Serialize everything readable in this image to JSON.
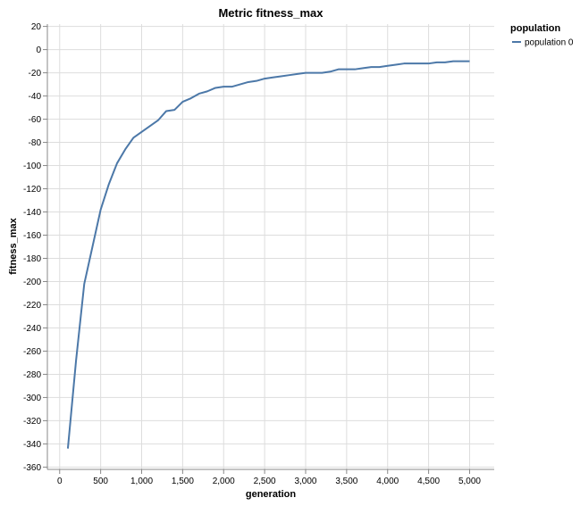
{
  "chart_data": {
    "type": "line",
    "title": "Metric fitness_max",
    "xlabel": "generation",
    "ylabel": "fitness_max",
    "xlim": [
      -150,
      5300
    ],
    "ylim": [
      -362,
      22
    ],
    "x_ticks": [
      0,
      500,
      1000,
      1500,
      2000,
      2500,
      3000,
      3500,
      4000,
      4500,
      5000
    ],
    "x_tick_labels": [
      "0",
      "500",
      "1,000",
      "1,500",
      "2,000",
      "2,500",
      "3,000",
      "3,500",
      "4,000",
      "4,500",
      "5,000"
    ],
    "y_ticks": [
      20,
      0,
      -20,
      -40,
      -60,
      -80,
      -100,
      -120,
      -140,
      -160,
      -180,
      -200,
      -220,
      -240,
      -260,
      -280,
      -300,
      -320,
      -340,
      -360
    ],
    "y_tick_labels": [
      "20",
      "0",
      "-20",
      "-40",
      "-60",
      "-80",
      "-100",
      "-120",
      "-140",
      "-160",
      "-180",
      "-200",
      "-220",
      "-240",
      "-260",
      "-280",
      "-300",
      "-320",
      "-340",
      "-360"
    ],
    "grid": true,
    "legend": {
      "title": "population",
      "placement": "right"
    },
    "series": [
      {
        "name": "population 0",
        "color": "#4c78a8",
        "x": [
          100,
          200,
          300,
          400,
          500,
          600,
          700,
          800,
          900,
          1000,
          1100,
          1200,
          1300,
          1400,
          1500,
          1600,
          1700,
          1800,
          1900,
          2000,
          2100,
          2200,
          2300,
          2400,
          2500,
          2600,
          2700,
          2800,
          2900,
          3000,
          3100,
          3200,
          3300,
          3400,
          3500,
          3600,
          3700,
          3800,
          3900,
          4000,
          4100,
          4200,
          4300,
          4400,
          4500,
          4600,
          4700,
          4800,
          4900,
          5000
        ],
        "values": [
          -344,
          -268,
          -202,
          -170,
          -138,
          -116,
          -98,
          -86,
          -76,
          -71,
          -66,
          -61,
          -53,
          -52,
          -45,
          -42,
          -38,
          -36,
          -33,
          -32,
          -32,
          -30,
          -28,
          -27,
          -25,
          -24,
          -23,
          -22,
          -21,
          -20,
          -20,
          -20,
          -19,
          -17,
          -17,
          -17,
          -16,
          -15,
          -15,
          -14,
          -13,
          -12,
          -12,
          -12,
          -12,
          -11,
          -11,
          -10,
          -10,
          -10
        ]
      }
    ]
  }
}
